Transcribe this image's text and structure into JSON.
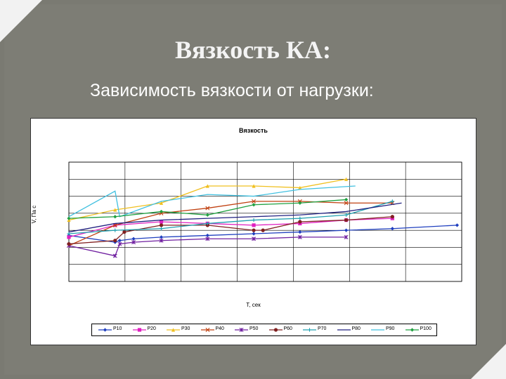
{
  "slide": {
    "title": "Вязкость КА:",
    "subtitle": "Зависимость вязкости от нагрузки:"
  },
  "chart_data": {
    "type": "line",
    "title": "Вязкость",
    "xlabel": "T, сек",
    "ylabel": "V, Па с",
    "grid": true,
    "legend_position": "bottom",
    "ylim": [
      0,
      7
    ],
    "series": [
      {
        "name": "P10",
        "color": "#1f3fbf",
        "marker": "diamond",
        "x": [
          0,
          1,
          1.1,
          1.4,
          2,
          3,
          4,
          5,
          6,
          7,
          8.4
        ],
        "values": [
          2.7,
          2.3,
          2.4,
          2.5,
          2.6,
          2.7,
          2.8,
          2.9,
          3.0,
          3.1,
          3.3
        ]
      },
      {
        "name": "P20",
        "color": "#e020c0",
        "marker": "square",
        "x": [
          0,
          1,
          2,
          3,
          4,
          5,
          6,
          7
        ],
        "values": [
          2.6,
          3.3,
          3.5,
          3.4,
          3.3,
          3.4,
          3.6,
          3.7
        ]
      },
      {
        "name": "P30",
        "color": "#f0c020",
        "marker": "triangle",
        "x": [
          0,
          1,
          2,
          3,
          4,
          5,
          6
        ],
        "values": [
          3.6,
          4.2,
          4.6,
          5.6,
          5.6,
          5.5,
          6.0
        ]
      },
      {
        "name": "P40",
        "color": "#c04010",
        "marker": "x",
        "x": [
          0,
          1,
          2,
          3,
          4,
          5,
          6,
          7
        ],
        "values": [
          2.1,
          3.3,
          4.0,
          4.3,
          4.7,
          4.7,
          4.6,
          4.6
        ]
      },
      {
        "name": "P50",
        "color": "#7020a0",
        "marker": "star",
        "x": [
          0,
          1,
          1.1,
          1.4,
          2,
          3,
          4,
          5,
          6
        ],
        "values": [
          2.1,
          1.5,
          2.2,
          2.3,
          2.4,
          2.5,
          2.5,
          2.6,
          2.6
        ]
      },
      {
        "name": "P60",
        "color": "#802020",
        "marker": "circle",
        "x": [
          0,
          1,
          1.2,
          2,
          3,
          4,
          4.2,
          5,
          6,
          7
        ],
        "values": [
          2.2,
          2.4,
          2.9,
          3.3,
          3.3,
          3.0,
          3.0,
          3.5,
          3.6,
          3.8
        ]
      },
      {
        "name": "P70",
        "color": "#20a0b0",
        "marker": "plus",
        "x": [
          0,
          1,
          2,
          3,
          4,
          5,
          6,
          7
        ],
        "values": [
          2.8,
          3.0,
          3.1,
          3.4,
          3.6,
          3.7,
          3.9,
          4.7
        ]
      },
      {
        "name": "P80",
        "color": "#202080",
        "marker": "none",
        "x": [
          0,
          1,
          2,
          3,
          4,
          5,
          6,
          7.2
        ],
        "values": [
          2.9,
          3.4,
          3.6,
          3.7,
          3.8,
          3.9,
          4.1,
          4.6
        ]
      },
      {
        "name": "P90",
        "color": "#40c0e0",
        "marker": "none",
        "x": [
          0,
          1,
          1.1,
          2,
          3,
          4,
          5,
          6.2
        ],
        "values": [
          3.8,
          5.3,
          3.8,
          4.7,
          5.1,
          5.0,
          5.4,
          5.6
        ]
      },
      {
        "name": "P100",
        "color": "#20a040",
        "marker": "diamond",
        "x": [
          0,
          1,
          2,
          3,
          4,
          5,
          6
        ],
        "values": [
          3.7,
          3.8,
          4.1,
          3.9,
          4.5,
          4.6,
          4.8
        ]
      }
    ]
  }
}
